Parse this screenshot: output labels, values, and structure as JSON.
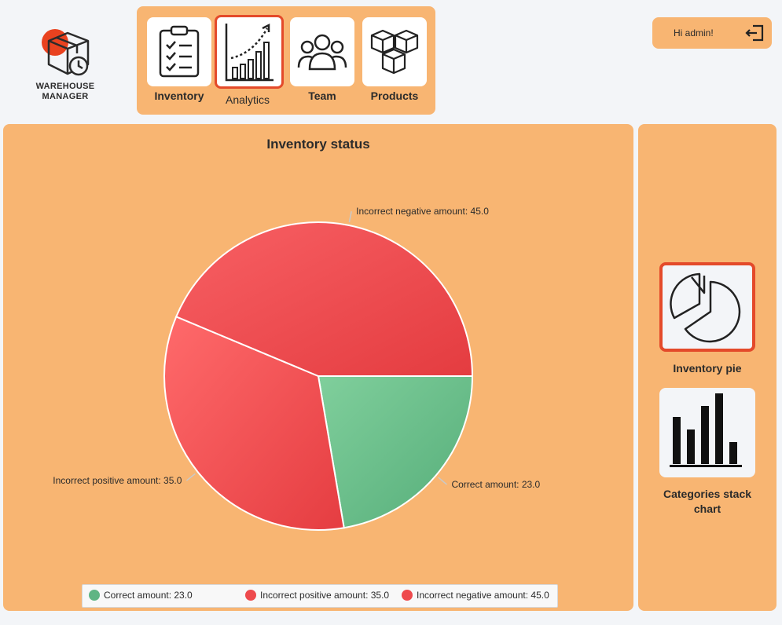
{
  "brand": {
    "line1": "WAREHOUSE",
    "line2": "MANAGER"
  },
  "nav": {
    "items": [
      {
        "label": "Inventory",
        "icon": "clipboard-checklist-icon",
        "active": false
      },
      {
        "label": "Analytics",
        "icon": "growth-chart-icon",
        "active": true
      },
      {
        "label": "Team",
        "icon": "team-icon",
        "active": false
      },
      {
        "label": "Products",
        "icon": "boxes-icon",
        "active": false
      }
    ]
  },
  "user": {
    "greeting": "Hi admin!",
    "logout_icon": "logout-icon"
  },
  "chart_data": {
    "type": "pie",
    "title": "Inventory status",
    "start_angle_deg": 0,
    "slices": [
      {
        "name": "Correct amount",
        "value": 23.0,
        "label": "Correct amount: 23.0",
        "color": "#5fb584"
      },
      {
        "name": "Incorrect positive amount",
        "value": 35.0,
        "label": "Incorrect positive amount: 35.0",
        "color": "#ef4c4f"
      },
      {
        "name": "Incorrect negative amount",
        "value": 45.0,
        "label": "Incorrect negative amount: 45.0",
        "color": "#ee4a4d"
      }
    ],
    "legend": {
      "position": "bottom",
      "entries": [
        "Correct amount: 23.0",
        "Incorrect positive amount: 35.0",
        "Incorrect negative amount: 45.0"
      ]
    }
  },
  "side": {
    "items": [
      {
        "label": "Inventory pie",
        "icon": "pie-chart-icon",
        "active": true
      },
      {
        "label": "Categories stack chart",
        "icon": "bar-chart-icon",
        "active": false
      }
    ]
  },
  "colors": {
    "panel": "#f8b572",
    "accent": "#e44a2a",
    "background": "#f3f5f8",
    "correct": "#5fb584",
    "incorrect": "#ee4a4d"
  }
}
